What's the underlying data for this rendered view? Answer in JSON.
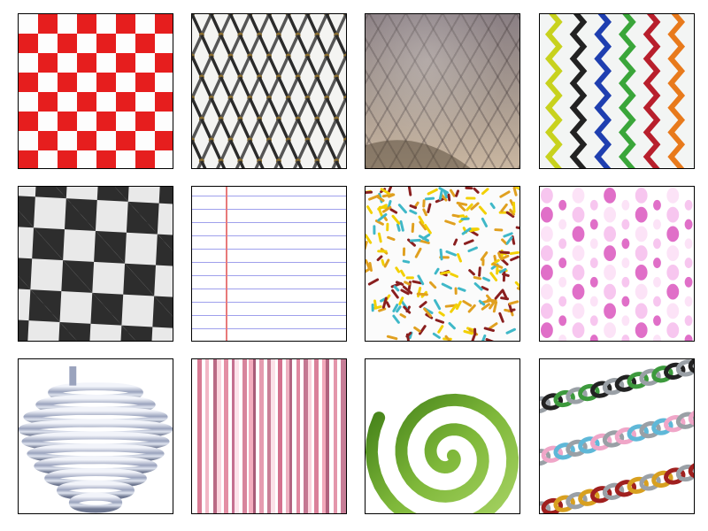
{
  "gallery": {
    "tiles": [
      {
        "name": "red-white-checkerboard",
        "colors": [
          "#e61e1e",
          "#fdfdfd"
        ]
      },
      {
        "name": "metal-wire-mesh",
        "colors": [
          "#2b2b2b",
          "#8a6d2e"
        ]
      },
      {
        "name": "fish-scales",
        "colors": [
          "#8a7f84",
          "#c9b6a0"
        ]
      },
      {
        "name": "multicolor-zigzags",
        "colors": [
          "#c8d21e",
          "#222222",
          "#1f3fb0",
          "#3aa63a",
          "#b81f2c",
          "#e87a1c"
        ]
      },
      {
        "name": "black-white-checkerboard",
        "colors": [
          "#2a2a2a",
          "#e9e9e9"
        ]
      },
      {
        "name": "lined-notebook-paper",
        "colors": [
          "#9fa0ec",
          "#e87a7a"
        ]
      },
      {
        "name": "colorful-sprinkles",
        "colors": [
          "#e0a020",
          "#8a1f1f",
          "#3fb8c8",
          "#f2d000"
        ]
      },
      {
        "name": "pink-polka-dots",
        "colors": [
          "#f7c6ef",
          "#e06fc8",
          "#fce3f7"
        ]
      },
      {
        "name": "metal-coil-spring",
        "colors": [
          "#8f99b3",
          "#e8ecf5"
        ]
      },
      {
        "name": "pink-vertical-stripes",
        "colors": [
          "#d77a93",
          "#f2b8c6",
          "#b96a85"
        ]
      },
      {
        "name": "green-spiral",
        "colors": [
          "#4f8f1f",
          "#9ccb4a"
        ]
      },
      {
        "name": "chainmail-chains",
        "colors": [
          "#9aa0a6",
          "#3d9a3d",
          "#5fb8d8",
          "#f0a6c8",
          "#d8a020",
          "#a0201f"
        ]
      }
    ]
  }
}
